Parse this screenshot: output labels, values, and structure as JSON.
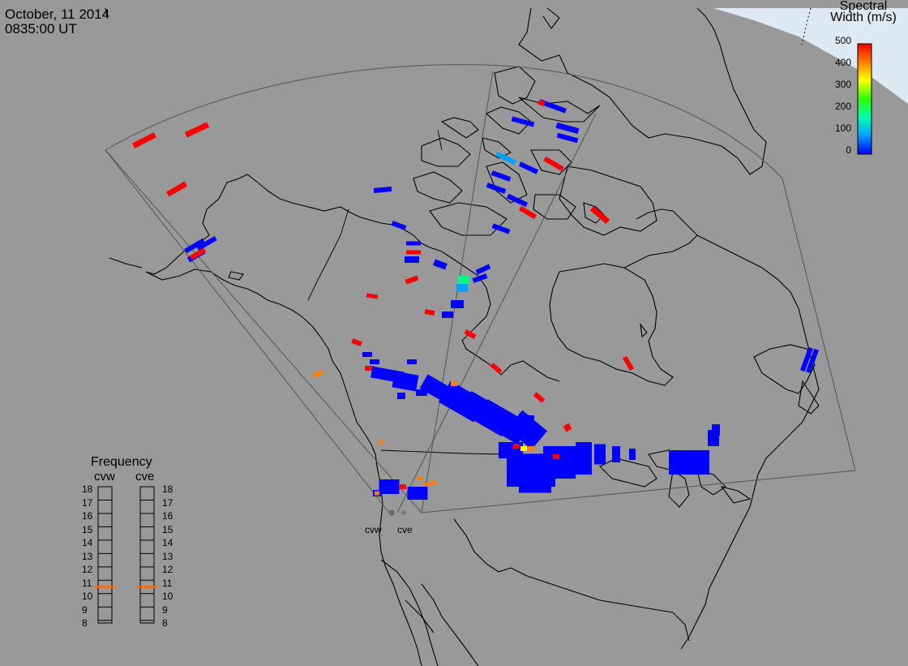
{
  "header": {
    "date": "October, 11 2014",
    "time": "0835:00 UT"
  },
  "colorbar": {
    "title_line1": "Spectral",
    "title_line2": "Width (m/s)",
    "min": 0,
    "max": 500,
    "ticks": [
      "500",
      "400",
      "300",
      "200",
      "100",
      "0"
    ],
    "colors": [
      "#0000ff",
      "#00a0ff",
      "#00ffb0",
      "#30ff00",
      "#ffff00",
      "#ff8000",
      "#ff0000"
    ]
  },
  "frequency_panel": {
    "title": "Frequency",
    "left_label": "cvw",
    "right_label": "cve",
    "ticks": [
      "18",
      "17",
      "16",
      "15",
      "14",
      "13",
      "12",
      "11",
      "10",
      "9",
      "8"
    ],
    "current_frequency_cvw": 10.7,
    "current_frequency_cve": 10.7,
    "marker_color": "#ff6a00"
  },
  "radars": [
    {
      "name": "cvw"
    },
    {
      "name": "cve"
    }
  ],
  "colors": {
    "background": "#999999",
    "sea_ice": "#dde9f3",
    "coastline": "#000000",
    "fov": "#555555"
  }
}
